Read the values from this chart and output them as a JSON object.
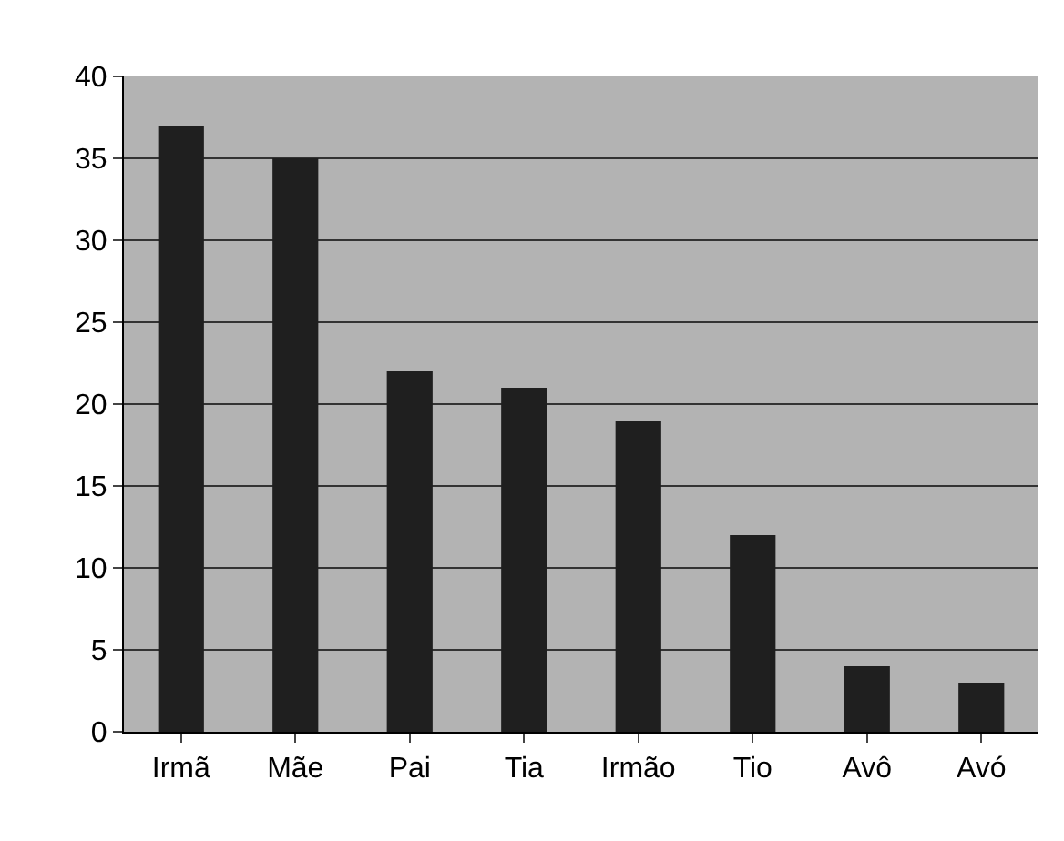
{
  "chart_data": {
    "type": "bar",
    "categories": [
      "Irmã",
      "Mãe",
      "Pai",
      "Tia",
      "Irmão",
      "Tio",
      "Avô",
      "Avó"
    ],
    "values": [
      37,
      35,
      22,
      21,
      19,
      12,
      4,
      3
    ],
    "color": "#1f1f1f",
    "ylim": [
      0,
      40
    ],
    "yticks": [
      0,
      5,
      10,
      15,
      20,
      25,
      30,
      35,
      40
    ],
    "grid": "y"
  }
}
